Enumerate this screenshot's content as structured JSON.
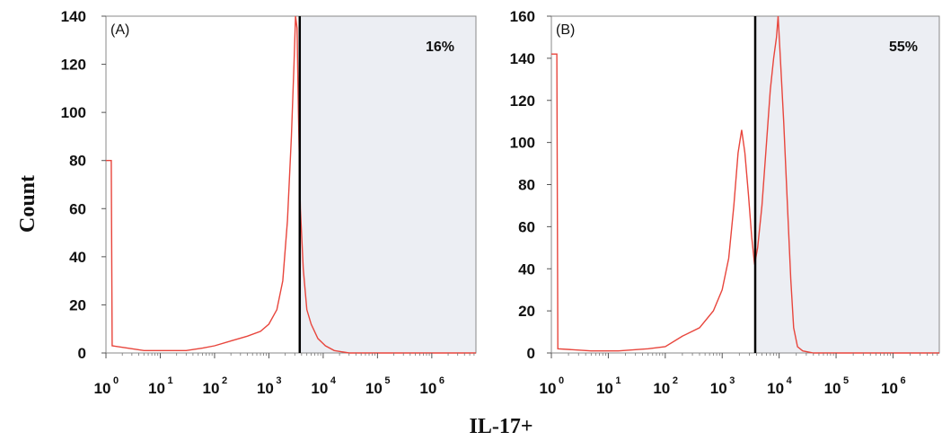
{
  "figure": {
    "ylabel": "Count",
    "xlabel": "IL-17+"
  },
  "colors": {
    "histogram": "#e8453c",
    "gate_fill": "#eceef3",
    "gate_line": "#000000",
    "axis": "#888888"
  },
  "chart_data": [
    {
      "type": "histogram",
      "panel_label": "(A)",
      "gate_percent": "16%",
      "x_scale": "log",
      "xlim": [
        1,
        6500000
      ],
      "ylim": [
        0,
        140
      ],
      "y_ticks": [
        0,
        20,
        40,
        60,
        80,
        100,
        120,
        140
      ],
      "x_tick_exponents": [
        "0",
        "1",
        "2",
        "3",
        "4",
        "5",
        "6"
      ],
      "x_tick_base": "10",
      "gate_x": 3700,
      "gate_side": "right",
      "grid": false,
      "series": [
        {
          "values": [
            [
              1,
              80
            ],
            [
              1.25,
              80
            ],
            [
              1.3,
              3
            ],
            [
              2.5,
              2
            ],
            [
              5,
              1
            ],
            [
              10,
              1
            ],
            [
              30,
              1
            ],
            [
              60,
              2
            ],
            [
              100,
              3
            ],
            [
              200,
              5
            ],
            [
              400,
              7
            ],
            [
              700,
              9
            ],
            [
              1000,
              12
            ],
            [
              1400,
              18
            ],
            [
              1800,
              30
            ],
            [
              2200,
              55
            ],
            [
              2600,
              90
            ],
            [
              2900,
              120
            ],
            [
              3100,
              140
            ],
            [
              3300,
              135
            ],
            [
              3500,
              100
            ],
            [
              3800,
              60
            ],
            [
              4300,
              35
            ],
            [
              5000,
              18
            ],
            [
              6000,
              12
            ],
            [
              8000,
              6
            ],
            [
              11000,
              3
            ],
            [
              16000,
              1
            ],
            [
              30000,
              0
            ],
            [
              100000,
              0
            ],
            [
              1000000,
              0
            ],
            [
              6500000,
              0
            ]
          ]
        }
      ]
    },
    {
      "type": "histogram",
      "panel_label": "(B)",
      "gate_percent": "55%",
      "x_scale": "log",
      "xlim": [
        1,
        6500000
      ],
      "ylim": [
        0,
        160
      ],
      "y_ticks": [
        0,
        20,
        40,
        60,
        80,
        100,
        120,
        140,
        160
      ],
      "x_tick_exponents": [
        "0",
        "1",
        "2",
        "3",
        "4",
        "5",
        "6"
      ],
      "x_tick_base": "10",
      "gate_x": 3800,
      "gate_side": "right",
      "grid": false,
      "series": [
        {
          "values": [
            [
              1,
              142
            ],
            [
              1.25,
              142
            ],
            [
              1.3,
              2
            ],
            [
              5,
              1
            ],
            [
              15,
              1
            ],
            [
              50,
              2
            ],
            [
              100,
              3
            ],
            [
              200,
              8
            ],
            [
              400,
              12
            ],
            [
              700,
              20
            ],
            [
              1000,
              30
            ],
            [
              1300,
              45
            ],
            [
              1600,
              70
            ],
            [
              1900,
              95
            ],
            [
              2200,
              106
            ],
            [
              2500,
              95
            ],
            [
              2900,
              75
            ],
            [
              3300,
              55
            ],
            [
              3700,
              42
            ],
            [
              4200,
              50
            ],
            [
              5000,
              70
            ],
            [
              6000,
              100
            ],
            [
              7000,
              125
            ],
            [
              8000,
              140
            ],
            [
              9000,
              150
            ],
            [
              9600,
              160
            ],
            [
              10500,
              140
            ],
            [
              12000,
              110
            ],
            [
              14000,
              70
            ],
            [
              16000,
              35
            ],
            [
              18000,
              12
            ],
            [
              21000,
              3
            ],
            [
              26000,
              1
            ],
            [
              40000,
              0
            ],
            [
              100000,
              0
            ],
            [
              1000000,
              0
            ],
            [
              6500000,
              0
            ]
          ]
        }
      ]
    }
  ]
}
